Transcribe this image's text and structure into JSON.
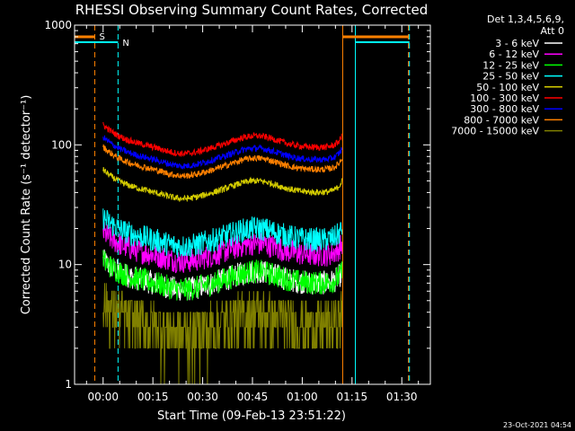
{
  "chart_data": {
    "type": "line",
    "title": "RHESSI Observing Summary Count Rates, Corrected",
    "xlabel": "Start Time (09-Feb-13 23:51:22)",
    "ylabel": "Corrected Count Rate (s⁻¹ detector⁻¹)",
    "y_scale": "log",
    "ylim": [
      1,
      1000
    ],
    "xlim_minutes": [
      -8.6,
      98.6
    ],
    "x_tick_labels": [
      "00:00",
      "00:15",
      "00:30",
      "00:45",
      "01:00",
      "01:15",
      "01:30"
    ],
    "y_tick_labels": [
      "1",
      "10",
      "100",
      "1000"
    ],
    "legend_header": [
      "Det 1,3,4,5,6,9,",
      "Att 0"
    ],
    "legend_placement": "right",
    "footer_stamp": "23-Oct-2021 04:54",
    "markers": [
      {
        "label": "S",
        "color": "#ff8000",
        "x_min": -2.5
      },
      {
        "label": "N",
        "color": "#00ffff",
        "x_min": 4.5
      }
    ],
    "series": [
      {
        "name": "3 - 6 keV",
        "color": "#ffffff",
        "level": 7
      },
      {
        "name": "6 - 12 keV",
        "color": "#ff00ff",
        "level": 12
      },
      {
        "name": "12 - 25 keV",
        "color": "#00ff00",
        "level": 7
      },
      {
        "name": "25 - 50 keV",
        "color": "#00ffff",
        "level": 16
      },
      {
        "name": "50 - 100 keV",
        "color": "#d4cc00",
        "level": 40
      },
      {
        "name": "100 - 300 keV",
        "color": "#ff0000",
        "level": 95
      },
      {
        "name": "300 - 800 keV",
        "color": "#0000ff",
        "level": 75
      },
      {
        "name": "800 - 7000 keV",
        "color": "#ff8000",
        "level": 62
      },
      {
        "name": "7000 - 15000 keV",
        "color": "#808000",
        "level": 3
      }
    ]
  }
}
